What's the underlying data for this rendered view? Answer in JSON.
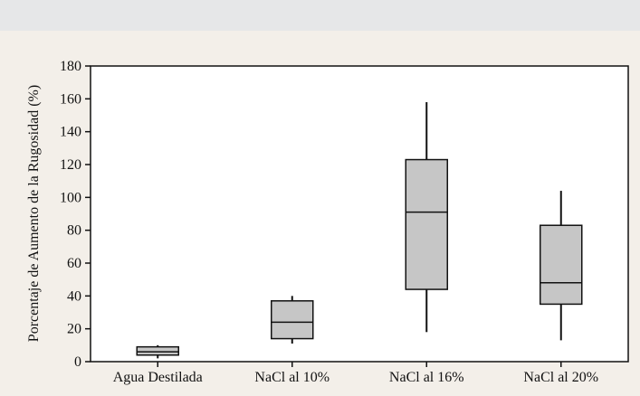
{
  "chart_data": {
    "type": "boxplot",
    "title": "",
    "xlabel": "",
    "ylabel": "Porcentaje de Aumento de la Rugosidad (%)",
    "ylim": [
      0,
      180
    ],
    "yticks": [
      0,
      20,
      40,
      60,
      80,
      100,
      120,
      140,
      160,
      180
    ],
    "grid": false,
    "legend": "none",
    "categories": [
      "Agua Destilada",
      "NaCl al 10%",
      "NaCl al 16%",
      "NaCl al 20%"
    ],
    "boxes": [
      {
        "category": "Agua Destilada",
        "min": 2,
        "q1": 4,
        "median": 6,
        "q3": 9,
        "max": 10
      },
      {
        "category": "NaCl al 10%",
        "min": 11,
        "q1": 14,
        "median": 24,
        "q3": 37,
        "max": 40
      },
      {
        "category": "NaCl al 16%",
        "min": 18,
        "q1": 44,
        "median": 91,
        "q3": 123,
        "max": 158
      },
      {
        "category": "NaCl al 20%",
        "min": 13,
        "q1": 35,
        "median": 48,
        "q3": 83,
        "max": 104
      }
    ],
    "colors": {
      "box_fill": "#c6c6c6",
      "stroke": "#111111",
      "plot_bg": "#ffffff"
    }
  }
}
